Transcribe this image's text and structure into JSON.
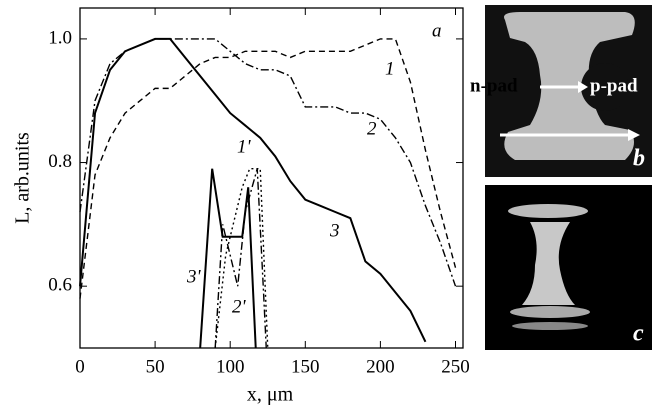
{
  "chart_data": {
    "type": "line",
    "panel_label": "a",
    "x_label": "x, μm",
    "y_label": "L, arb.units",
    "xlim": [
      0,
      255
    ],
    "ylim": [
      0.5,
      1.05
    ],
    "xticks": [
      0,
      50,
      100,
      150,
      200,
      250
    ],
    "yticks": [
      0.6,
      0.8,
      {
        "value": 1,
        "label": "1.0"
      }
    ],
    "series": [
      {
        "name": "1",
        "color": "#000000",
        "style": "dashed",
        "x": [
          0,
          10,
          20,
          30,
          40,
          50,
          60,
          70,
          80,
          90,
          100,
          110,
          120,
          130,
          140,
          150,
          160,
          170,
          180,
          190,
          200,
          210,
          220,
          230,
          240,
          250
        ],
        "values": [
          0.58,
          0.78,
          0.84,
          0.88,
          0.9,
          0.92,
          0.92,
          0.94,
          0.96,
          0.97,
          0.97,
          0.98,
          0.98,
          0.98,
          0.97,
          0.98,
          0.98,
          0.98,
          0.98,
          0.99,
          1.0,
          1.0,
          0.93,
          0.82,
          0.72,
          0.63
        ]
      },
      {
        "name": "2",
        "color": "#000000",
        "style": "dashdot",
        "x": [
          0,
          10,
          20,
          30,
          40,
          50,
          60,
          70,
          80,
          90,
          100,
          110,
          120,
          130,
          140,
          150,
          160,
          170,
          180,
          190,
          200,
          210,
          220,
          230,
          240,
          250
        ],
        "values": [
          0.72,
          0.9,
          0.96,
          0.98,
          0.99,
          1.0,
          1.0,
          1.0,
          1.0,
          1.0,
          0.98,
          0.96,
          0.95,
          0.95,
          0.94,
          0.89,
          0.89,
          0.89,
          0.88,
          0.88,
          0.87,
          0.84,
          0.8,
          0.73,
          0.67,
          0.6
        ]
      },
      {
        "name": "3",
        "color": "#000000",
        "style": "solid",
        "x": [
          0,
          10,
          20,
          30,
          40,
          50,
          60,
          70,
          80,
          90,
          100,
          110,
          120,
          130,
          140,
          150,
          160,
          170,
          180,
          190,
          200,
          210,
          220,
          230
        ],
        "values": [
          0.6,
          0.88,
          0.95,
          0.98,
          0.99,
          1.0,
          1.0,
          0.97,
          0.94,
          0.91,
          0.88,
          0.86,
          0.84,
          0.81,
          0.77,
          0.74,
          0.73,
          0.72,
          0.71,
          0.64,
          0.62,
          0.59,
          0.56,
          0.51
        ]
      },
      {
        "name": "1'",
        "color": "#000000",
        "style": "dotted",
        "x": [
          90,
          97,
          108,
          113,
          120,
          125
        ],
        "values": [
          0.5,
          0.65,
          0.76,
          0.79,
          0.79,
          0.5
        ]
      },
      {
        "name": "2'",
        "color": "#000000",
        "style": "dashdot",
        "x": [
          90,
          95,
          100,
          105,
          110,
          118,
          122,
          124
        ],
        "values": [
          0.5,
          0.7,
          0.65,
          0.6,
          0.72,
          0.79,
          0.6,
          0.5
        ]
      },
      {
        "name": "3'",
        "color": "#000000",
        "style": "solid",
        "x": [
          80,
          88,
          95,
          108,
          112,
          117
        ],
        "values": [
          0.5,
          0.79,
          0.68,
          0.68,
          0.76,
          0.5
        ]
      }
    ]
  },
  "images": {
    "b": {
      "label": "b",
      "n_pad": "n-pad",
      "p_pad": "p-pad"
    },
    "c": {
      "label": "c"
    }
  }
}
